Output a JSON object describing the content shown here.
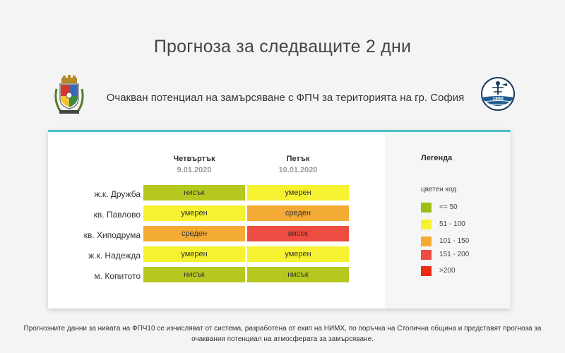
{
  "page": {
    "title": "Прогноза за следващите 2 дни",
    "subtitle": "Очакван потенциал на замърсяване с ФПЧ за територията на гр. София",
    "footer": "Прогнозните данни за нивата на ФПЧ10 се изчисляват от система, разработена от екип на НИМХ, по поръчка на Столична община и представят прогноза за очаквания потенциал на атмосферата за замърсяване."
  },
  "logos": {
    "left": "sofia-coat-of-arms",
    "right": "nimh-logo",
    "right_text": "1890"
  },
  "forecast": {
    "days": [
      {
        "name": "Четвъртък",
        "date": "9.01.2020"
      },
      {
        "name": "Петък",
        "date": "10.01.2020"
      }
    ],
    "rows": [
      {
        "location": "ж.к. Дружба",
        "cells": [
          {
            "label": "нисък",
            "color": "#b4c81f"
          },
          {
            "label": "умерен",
            "color": "#f6f231"
          }
        ]
      },
      {
        "location": "кв. Павлово",
        "cells": [
          {
            "label": "умерен",
            "color": "#f6f231"
          },
          {
            "label": "среден",
            "color": "#f4ab35"
          }
        ]
      },
      {
        "location": "кв. Хиподрума",
        "cells": [
          {
            "label": "среден",
            "color": "#f4ab35"
          },
          {
            "label": "висок",
            "color": "#ec4c42"
          }
        ]
      },
      {
        "location": "ж.к. Надежда",
        "cells": [
          {
            "label": "умерен",
            "color": "#f6f231"
          },
          {
            "label": "умерен",
            "color": "#f6f231"
          }
        ]
      },
      {
        "location": "м. Копитото",
        "cells": [
          {
            "label": "нисък",
            "color": "#b4c81f"
          },
          {
            "label": "нисък",
            "color": "#b4c81f"
          }
        ]
      }
    ]
  },
  "legend": {
    "title": "Легенда",
    "subtitle": "цветен код",
    "items": [
      {
        "label": "<= 50",
        "color": "#9cc013"
      },
      {
        "label": "51 - 100",
        "color": "#f6f231"
      },
      {
        "label": "101 - 150",
        "color": "#f4ab35"
      },
      {
        "label": "151 - 200",
        "color": "#ec4c42"
      },
      {
        "label": ">200",
        "color": "#ec2a12"
      }
    ]
  },
  "colors": {
    "accent": "#4cc0c4"
  }
}
